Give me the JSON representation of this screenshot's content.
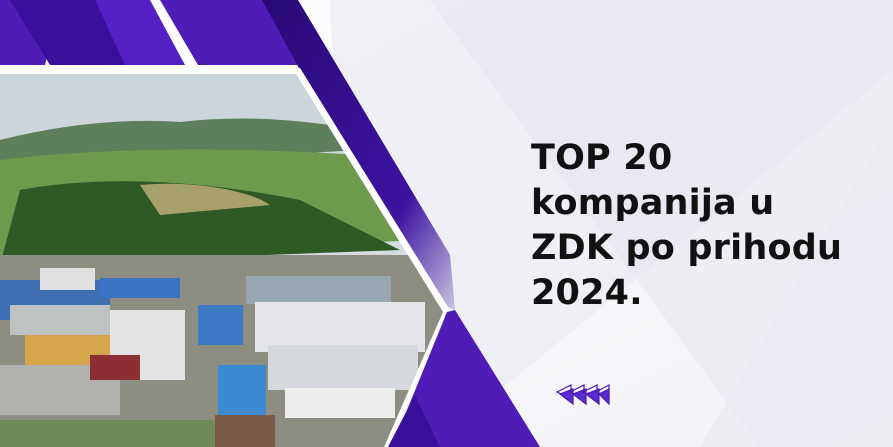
{
  "headline": {
    "lines": [
      "TOP 20",
      "kompanija u",
      "ZDK po prihodu",
      "2024."
    ]
  },
  "colors": {
    "purple": "#4f1cb8",
    "dark_purple": "#2d0a7a",
    "light_bg": "#ebebf3",
    "text": "#111111"
  },
  "photo": {
    "subject": "aerial photo of industrial zone with green hills"
  },
  "decoration": {
    "icon": "chevron-arrows-left-icon"
  }
}
